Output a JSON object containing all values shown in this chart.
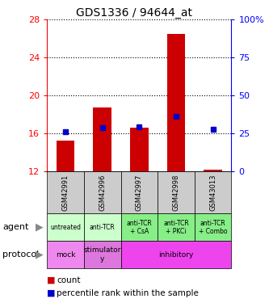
{
  "title": "GDS1336 / 94644_at",
  "samples": [
    "GSM42991",
    "GSM42996",
    "GSM42997",
    "GSM42998",
    "GSM43013"
  ],
  "bar_bottoms": [
    12,
    12,
    12,
    12,
    12
  ],
  "bar_tops": [
    15.2,
    18.7,
    16.6,
    26.5,
    12.15
  ],
  "percentile_values": [
    16.2,
    16.6,
    16.7,
    17.8,
    16.4
  ],
  "ylim_left": [
    12,
    28
  ],
  "ylim_right": [
    0,
    100
  ],
  "yticks_left": [
    12,
    16,
    20,
    24,
    28
  ],
  "yticks_right": [
    0,
    25,
    50,
    75,
    100
  ],
  "ytick_labels_right": [
    "0",
    "25",
    "50",
    "75",
    "100%"
  ],
  "bar_color": "#cc0000",
  "percentile_color": "#0000cc",
  "agent_labels": [
    "untreated",
    "anti-TCR",
    "anti-TCR\n+ CsA",
    "anti-TCR\n+ PKCi",
    "anti-TCR\n+ Combo"
  ],
  "agent_color_light": "#ccffcc",
  "agent_color_dark": "#88ee88",
  "protocol_color_mock": "#ee88ee",
  "protocol_color_stim": "#dd77dd",
  "protocol_color_inhib": "#ee44ee",
  "sample_bg_color": "#cccccc",
  "legend_count_color": "#cc0000",
  "legend_pct_color": "#0000cc"
}
